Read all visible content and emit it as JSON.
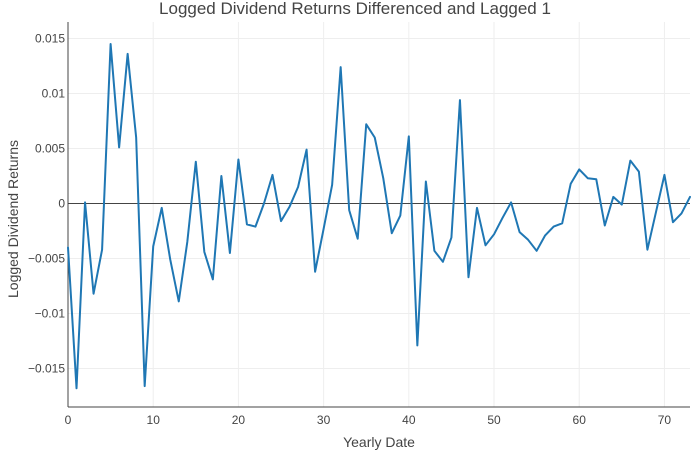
{
  "chart_data": {
    "type": "line",
    "title": "Logged Dividend Returns Differenced and Lagged 1",
    "xlabel": "Yearly Date",
    "ylabel": "Logged Dividend Returns",
    "xlim": [
      0,
      73
    ],
    "ylim": [
      -0.0185,
      0.0165
    ],
    "x_ticks": [
      0,
      10,
      20,
      30,
      40,
      50,
      60,
      70
    ],
    "x_tick_labels": [
      "0",
      "10",
      "20",
      "30",
      "40",
      "50",
      "60",
      "70"
    ],
    "y_ticks": [
      -0.015,
      -0.01,
      -0.005,
      0,
      0.005,
      0.01,
      0.015
    ],
    "y_tick_labels": [
      "−0.015",
      "−0.01",
      "−0.005",
      "0",
      "0.005",
      "0.01",
      "0.015"
    ],
    "grid": true,
    "zero_line": true,
    "line_color": "#1f77b4",
    "series": [
      {
        "x": [
          0,
          1,
          2,
          3,
          4,
          5,
          6,
          7,
          8,
          9,
          10,
          11,
          12,
          13,
          14,
          15,
          16,
          17,
          18,
          19,
          20,
          21,
          22,
          23,
          24,
          25,
          26,
          27,
          28,
          29,
          30,
          31,
          32,
          33,
          34,
          35,
          36,
          37,
          38,
          39,
          40,
          41,
          42,
          43,
          44,
          45,
          46,
          47,
          48,
          49,
          50,
          51,
          52,
          53,
          54,
          55,
          56,
          57,
          58,
          59,
          60,
          61,
          62,
          63,
          64,
          65,
          66,
          67,
          68,
          69,
          70,
          71,
          72,
          73
        ],
        "y": [
          -0.004,
          -0.0168,
          0.0001,
          -0.0082,
          -0.0042,
          0.0145,
          0.0051,
          0.0136,
          0.006,
          -0.0166,
          -0.0039,
          -0.0004,
          -0.0051,
          -0.0089,
          -0.0035,
          0.0038,
          -0.0044,
          -0.0069,
          0.0025,
          -0.0045,
          0.004,
          -0.0019,
          -0.0021,
          0.0,
          0.0026,
          -0.0016,
          -0.0003,
          0.0015,
          0.0049,
          -0.0062,
          -0.0023,
          0.0017,
          0.0124,
          -0.0006,
          -0.0032,
          0.0072,
          0.006,
          0.0023,
          -0.0027,
          -0.0011,
          0.0061,
          -0.0129,
          0.002,
          -0.0043,
          -0.0053,
          -0.0031,
          0.0094,
          -0.0067,
          -0.0004,
          -0.0038,
          -0.0028,
          -0.0013,
          0.0001,
          -0.0026,
          -0.0033,
          -0.0043,
          -0.0029,
          -0.0021,
          -0.0018,
          0.0018,
          0.0031,
          0.0023,
          0.0022,
          -0.002,
          0.0006,
          -0.0001,
          0.0039,
          0.0029,
          -0.0042,
          -0.0008,
          0.0026,
          -0.0017,
          -0.0009,
          0.0006
        ]
      }
    ]
  }
}
